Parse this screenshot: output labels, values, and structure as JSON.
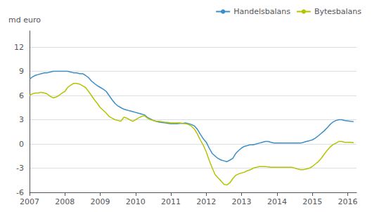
{
  "chart_data": {
    "type": "line",
    "ylabel": "md euro",
    "xlim": [
      2007.0,
      2016.25
    ],
    "xticks": [
      2007,
      2008,
      2009,
      2010,
      2011,
      2012,
      2013,
      2014,
      2015,
      2016
    ],
    "ylim": [
      -6,
      14
    ],
    "yticks": [
      -6,
      -3,
      0,
      3,
      6,
      9,
      12
    ],
    "grid": true,
    "legend": "upper right",
    "x": [
      2007.0,
      2007.08,
      2007.17,
      2007.25,
      2007.33,
      2007.42,
      2007.5,
      2007.58,
      2007.67,
      2007.75,
      2007.83,
      2007.92,
      2008.0,
      2008.08,
      2008.17,
      2008.25,
      2008.33,
      2008.42,
      2008.5,
      2008.58,
      2008.67,
      2008.75,
      2008.83,
      2008.92,
      2009.0,
      2009.08,
      2009.17,
      2009.25,
      2009.33,
      2009.42,
      2009.5,
      2009.58,
      2009.67,
      2009.75,
      2009.83,
      2009.92,
      2010.0,
      2010.08,
      2010.17,
      2010.25,
      2010.33,
      2010.42,
      2010.5,
      2010.58,
      2010.67,
      2010.75,
      2010.83,
      2010.92,
      2011.0,
      2011.08,
      2011.17,
      2011.25,
      2011.33,
      2011.42,
      2011.5,
      2011.58,
      2011.67,
      2011.75,
      2011.83,
      2011.92,
      2012.0,
      2012.08,
      2012.17,
      2012.25,
      2012.33,
      2012.42,
      2012.5,
      2012.58,
      2012.67,
      2012.75,
      2012.83,
      2012.92,
      2013.0,
      2013.08,
      2013.17,
      2013.25,
      2013.33,
      2013.42,
      2013.5,
      2013.58,
      2013.67,
      2013.75,
      2013.83,
      2013.92,
      2014.0,
      2014.08,
      2014.17,
      2014.25,
      2014.33,
      2014.42,
      2014.5,
      2014.58,
      2014.67,
      2014.75,
      2014.83,
      2014.92,
      2015.0,
      2015.08,
      2015.17,
      2015.25,
      2015.33,
      2015.42,
      2015.5,
      2015.58,
      2015.67,
      2015.75,
      2015.83,
      2015.92,
      2016.0,
      2016.08,
      2016.17
    ],
    "series": [
      {
        "name": "Handelsbalans",
        "color": "#3a8fc7",
        "values": [
          8.0,
          8.3,
          8.5,
          8.6,
          8.7,
          8.8,
          8.8,
          8.9,
          9.0,
          9.0,
          9.0,
          9.0,
          9.0,
          9.0,
          8.9,
          8.8,
          8.8,
          8.7,
          8.7,
          8.5,
          8.2,
          7.8,
          7.5,
          7.2,
          7.0,
          6.8,
          6.5,
          6.0,
          5.5,
          5.0,
          4.7,
          4.5,
          4.3,
          4.2,
          4.1,
          4.0,
          3.9,
          3.8,
          3.7,
          3.6,
          3.3,
          3.1,
          2.9,
          2.8,
          2.7,
          2.65,
          2.6,
          2.55,
          2.5,
          2.5,
          2.5,
          2.55,
          2.55,
          2.6,
          2.5,
          2.4,
          2.2,
          1.8,
          1.2,
          0.6,
          0.2,
          -0.5,
          -1.2,
          -1.5,
          -1.8,
          -2.0,
          -2.1,
          -2.2,
          -2.0,
          -1.8,
          -1.2,
          -0.8,
          -0.5,
          -0.3,
          -0.2,
          -0.1,
          -0.1,
          0.0,
          0.1,
          0.2,
          0.3,
          0.3,
          0.2,
          0.1,
          0.1,
          0.1,
          0.1,
          0.1,
          0.1,
          0.1,
          0.1,
          0.1,
          0.1,
          0.2,
          0.3,
          0.4,
          0.5,
          0.7,
          1.0,
          1.3,
          1.6,
          2.0,
          2.4,
          2.7,
          2.9,
          3.0,
          3.0,
          2.9,
          2.85,
          2.8,
          2.75
        ]
      },
      {
        "name": "Bytesbalans",
        "color": "#b5c400",
        "values": [
          6.0,
          6.2,
          6.3,
          6.3,
          6.4,
          6.3,
          6.2,
          5.9,
          5.7,
          5.8,
          6.0,
          6.3,
          6.5,
          7.0,
          7.3,
          7.5,
          7.5,
          7.4,
          7.2,
          7.0,
          6.5,
          6.0,
          5.5,
          5.0,
          4.5,
          4.2,
          3.8,
          3.4,
          3.2,
          3.0,
          2.9,
          2.8,
          3.3,
          3.2,
          3.0,
          2.8,
          3.0,
          3.2,
          3.4,
          3.5,
          3.2,
          3.0,
          2.9,
          2.8,
          2.8,
          2.75,
          2.7,
          2.65,
          2.6,
          2.6,
          2.6,
          2.6,
          2.55,
          2.5,
          2.4,
          2.2,
          1.8,
          1.2,
          0.5,
          -0.2,
          -1.0,
          -2.0,
          -3.0,
          -3.8,
          -4.2,
          -4.6,
          -5.0,
          -5.1,
          -4.8,
          -4.3,
          -3.9,
          -3.7,
          -3.6,
          -3.5,
          -3.3,
          -3.2,
          -3.0,
          -2.9,
          -2.8,
          -2.8,
          -2.8,
          -2.85,
          -2.9,
          -2.9,
          -2.9,
          -2.9,
          -2.9,
          -2.9,
          -2.9,
          -2.9,
          -3.0,
          -3.1,
          -3.2,
          -3.2,
          -3.1,
          -3.0,
          -2.8,
          -2.5,
          -2.2,
          -1.8,
          -1.3,
          -0.8,
          -0.4,
          -0.1,
          0.1,
          0.3,
          0.3,
          0.2,
          0.2,
          0.2,
          0.15
        ]
      }
    ]
  }
}
